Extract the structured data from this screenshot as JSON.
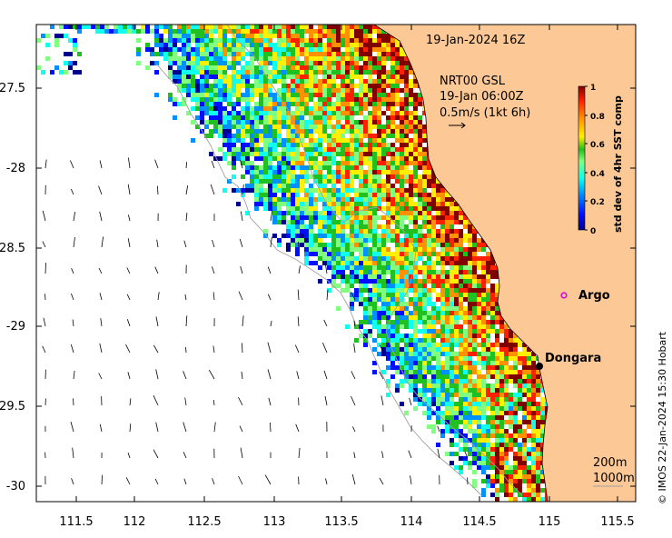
{
  "title": "19-Jan-2024 16Z",
  "product": {
    "line1": "NRT00 GSL",
    "line2": "19-Jan 06:00Z",
    "line3": "0.5m/s (1kt 6h)"
  },
  "x_axis": {
    "ticks": [
      111.5,
      112,
      112.5,
      113,
      113.5,
      114,
      114.5,
      115,
      115.5
    ],
    "labels": [
      "111.5",
      "112",
      "112.5",
      "113",
      "113.5",
      "114",
      "114.5",
      "115",
      "115.5"
    ]
  },
  "y_axis": {
    "ticks": [
      -27.5,
      -28,
      -28.5,
      -29,
      -29.5,
      -30
    ],
    "labels": [
      "-27.5",
      "-28",
      "-28.5",
      "-29",
      "-29.5",
      "-30"
    ]
  },
  "colorbar": {
    "title": "std dev of 4hr SST comp",
    "ticks": [
      0,
      0.2,
      0.4,
      0.6,
      0.8,
      1
    ],
    "labels": [
      "0",
      "0.2",
      "0.4",
      "0.6",
      "0.8",
      "1"
    ],
    "colors": [
      "#00008f",
      "#0010ff",
      "#0090ff",
      "#10ffef",
      "#80ff80",
      "#20c020",
      "#ffef00",
      "#ff9000",
      "#ff2000",
      "#800000"
    ]
  },
  "places": [
    {
      "name": "Argo",
      "lon": 114.93,
      "lat": -28.83,
      "marker": "circle-open",
      "color": "#e000e0"
    },
    {
      "name": "Dongara",
      "lon": 114.93,
      "lat": -29.25,
      "marker": "dot",
      "color": "#000000"
    }
  ],
  "contours": {
    "label_200": "200m",
    "label_1000": "1000m"
  },
  "credit": "© IMOS 22-Jan-2024 15:30 Hobart",
  "colors": {
    "land": "#fcc896",
    "ocean": "#ffffff",
    "contour": "#a0a0a0"
  }
}
